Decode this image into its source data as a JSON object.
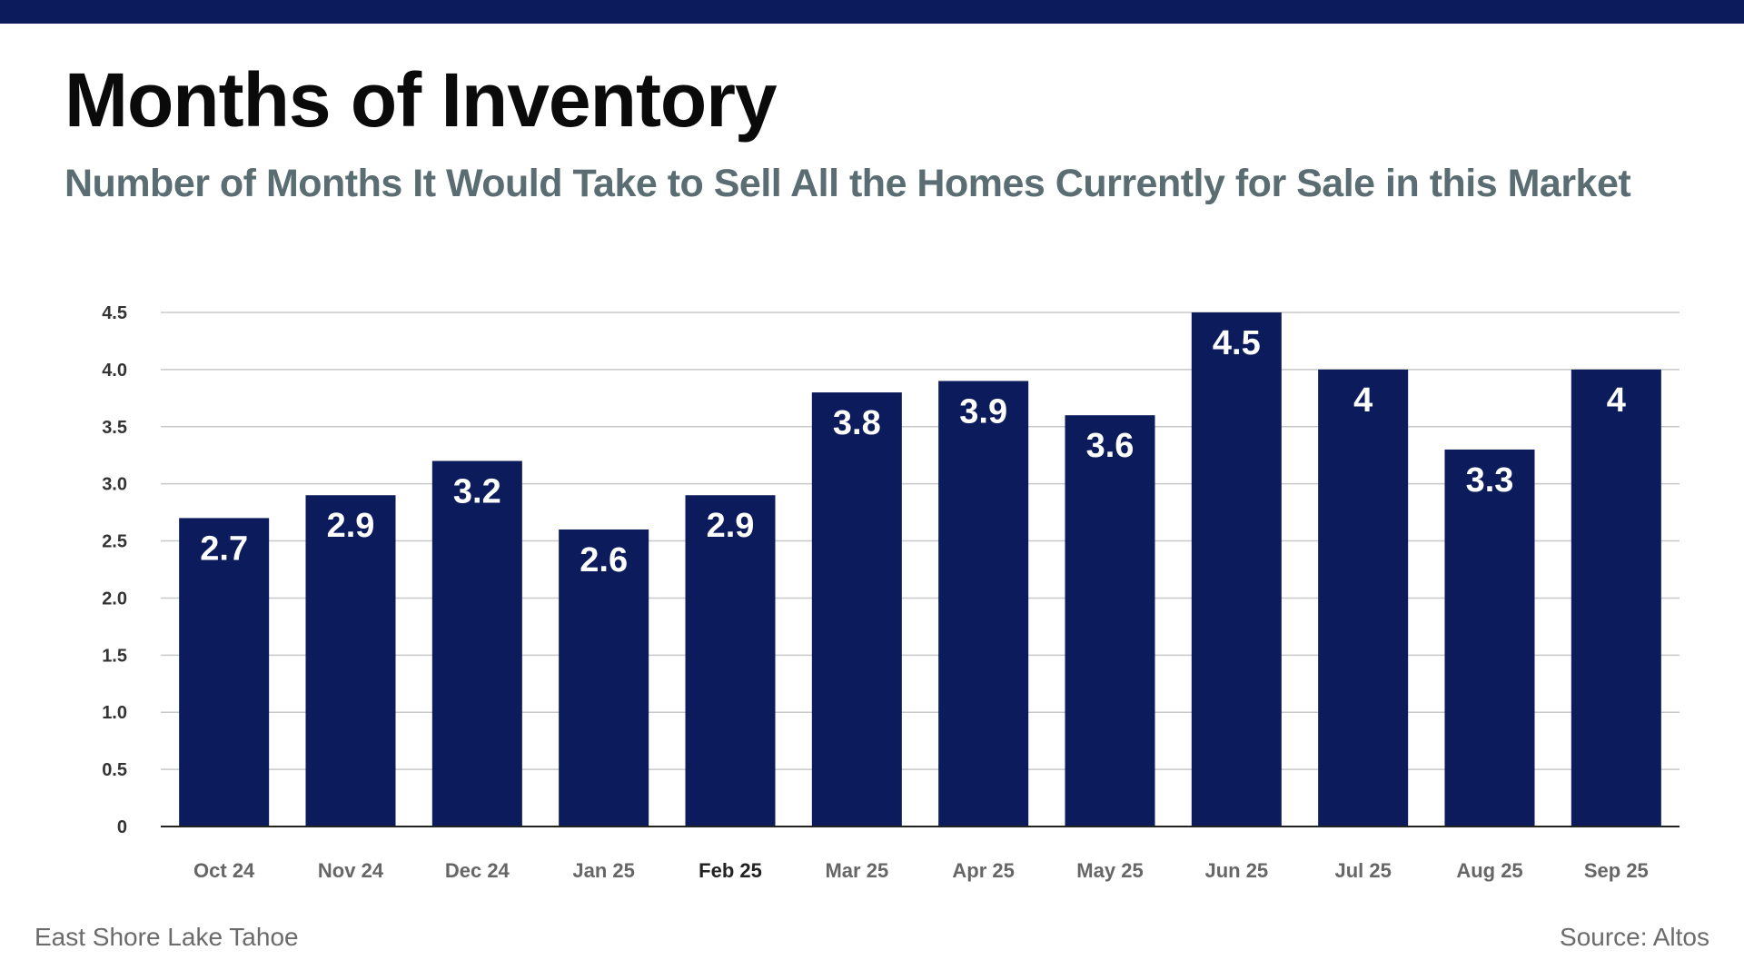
{
  "header": {
    "title": "Months of Inventory",
    "subtitle": "Number of Months It Would Take to Sell All the Homes Currently for Sale in this Market"
  },
  "footer": {
    "location": "East Shore Lake Tahoe",
    "source": "Source: Altos"
  },
  "colors": {
    "bar": "#0b1b5c",
    "top_bar": "#0b1b5c",
    "grid": "#c8c8c8",
    "axis": "#222222"
  },
  "chart_data": {
    "type": "bar",
    "title": "Months of Inventory",
    "subtitle": "Number of Months It Would Take to Sell All the Homes Currently for Sale in this Market",
    "xlabel": "",
    "ylabel": "",
    "categories": [
      "Oct 24",
      "Nov 24",
      "Dec 24",
      "Jan 25",
      "Feb 25",
      "Mar 25",
      "Apr 25",
      "May 25",
      "Jun 25",
      "Jul 25",
      "Aug 25",
      "Sep 25"
    ],
    "values": [
      2.7,
      2.9,
      3.2,
      2.6,
      2.9,
      3.8,
      3.9,
      3.6,
      4.5,
      4,
      3.3,
      4
    ],
    "data_labels": [
      "2.7",
      "2.9",
      "3.2",
      "2.6",
      "2.9",
      "3.8",
      "3.9",
      "3.6",
      "4.5",
      "4",
      "3.3",
      "4"
    ],
    "ylim": [
      0,
      4.5
    ],
    "yticks": [
      0,
      0.5,
      1.0,
      1.5,
      2.0,
      2.5,
      3.0,
      3.5,
      4.0,
      4.5
    ],
    "ytick_labels": [
      "0",
      "0.5",
      "1.0",
      "1.5",
      "2.0",
      "2.5",
      "3.0",
      "3.5",
      "4.0",
      "4.5"
    ],
    "grid": true,
    "legend": "none"
  }
}
